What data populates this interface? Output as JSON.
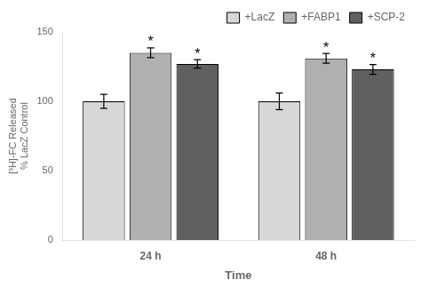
{
  "chart_data": {
    "type": "bar",
    "categories": [
      "24 h",
      "48 h"
    ],
    "series": [
      {
        "name": "+LacZ",
        "color": "#d8d8d8",
        "values": [
          100,
          100
        ],
        "errors": [
          5,
          6
        ]
      },
      {
        "name": "+FABP1",
        "color": "#b0b0b0",
        "values": [
          135,
          131
        ],
        "errors": [
          3.5,
          3.5
        ]
      },
      {
        "name": "+SCP-2",
        "color": "#606060",
        "values": [
          127,
          123
        ],
        "errors": [
          3,
          3.5
        ]
      }
    ],
    "xlabel": "Time",
    "ylabel": "[³H]-FC Released\n% LacZ Control",
    "ylim": [
      0,
      150
    ],
    "yticks": [
      0,
      50,
      100,
      150
    ],
    "grid": false,
    "legend": "upper right",
    "annotations": [
      {
        "text": "*",
        "category": "24 h",
        "series": "+FABP1"
      },
      {
        "text": "*",
        "category": "24 h",
        "series": "+SCP-2"
      },
      {
        "text": "*",
        "category": "48 h",
        "series": "+FABP1"
      },
      {
        "text": "*",
        "category": "48 h",
        "series": "+SCP-2"
      }
    ]
  }
}
